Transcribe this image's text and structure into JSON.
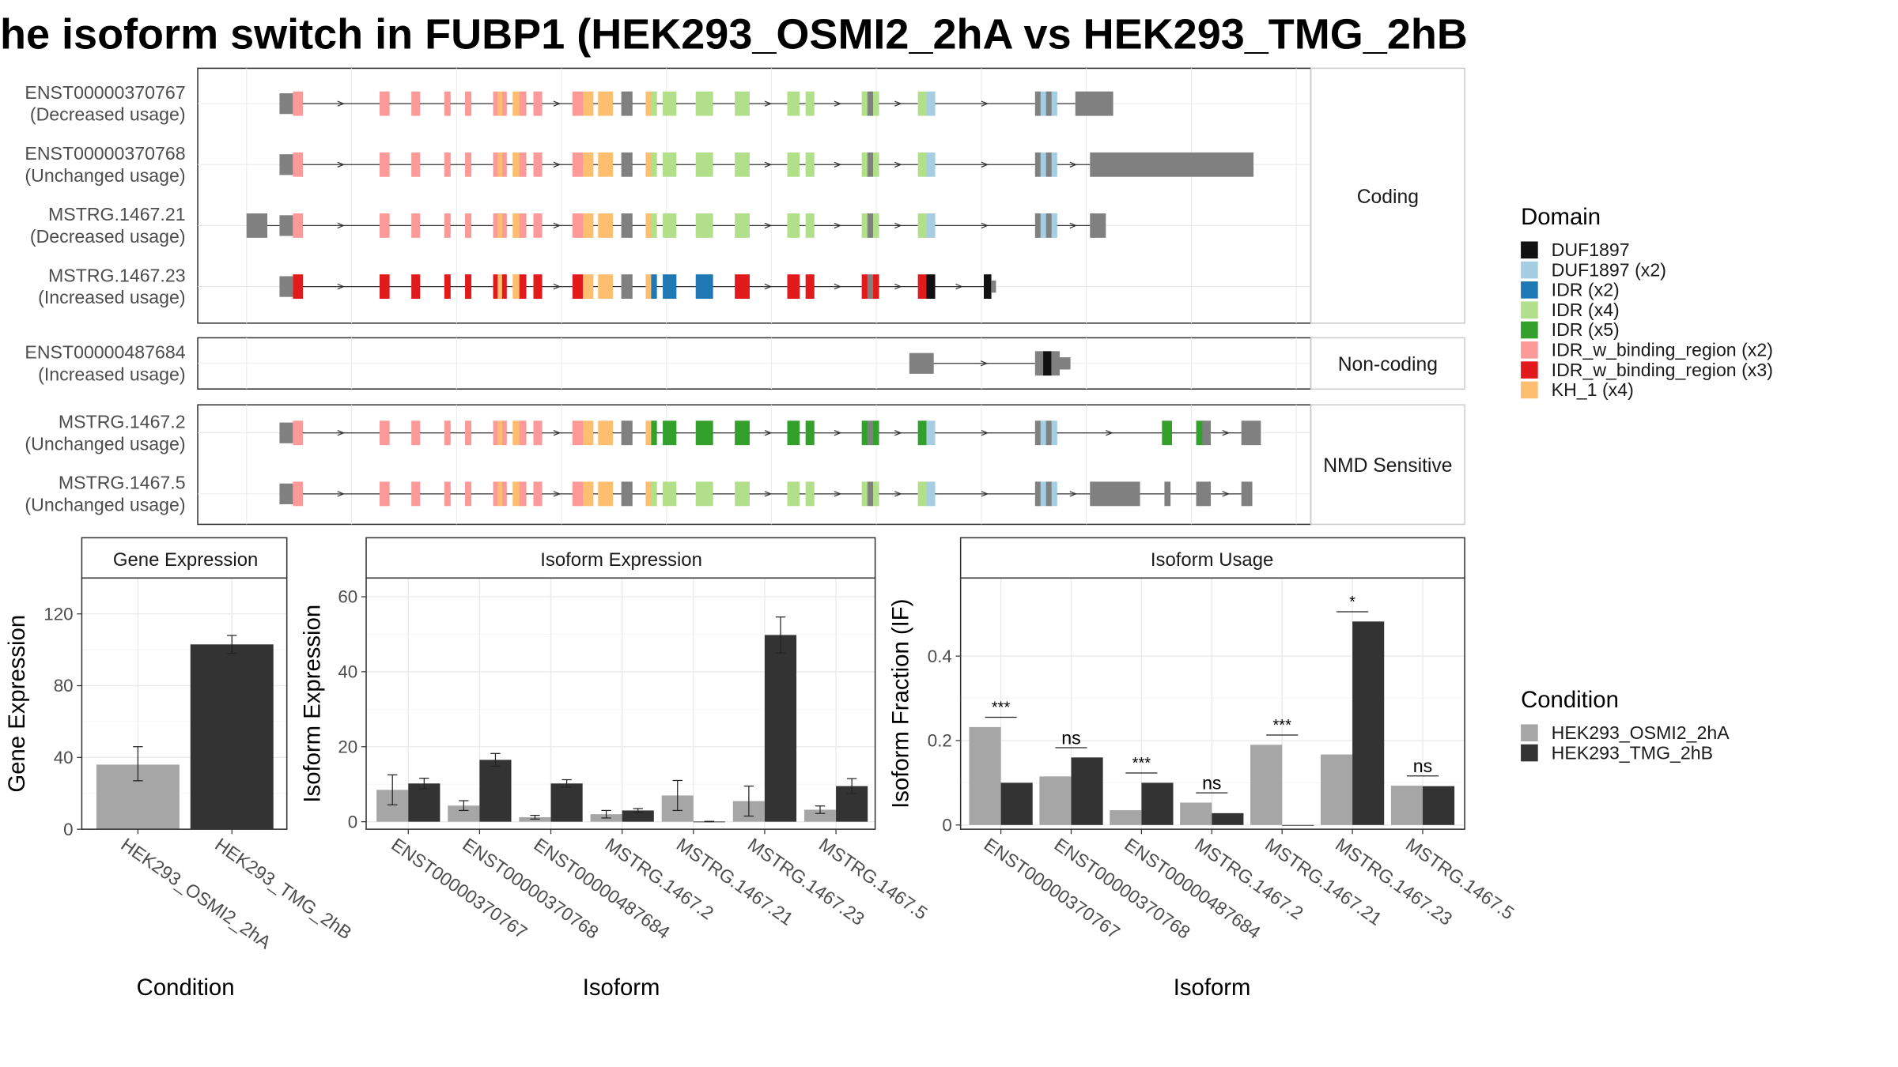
{
  "title": "he isoform switch in FUBP1 (HEK293_OSMI2_2hA vs HEK293_TMG_2hB",
  "colors": {
    "condition_a": "#a6a6a6",
    "condition_b": "#333333",
    "intron": "#333333",
    "utr": "#808080"
  },
  "domain_legend": {
    "title": "Domain",
    "items": [
      {
        "label": "DUF1897",
        "color": "#111111"
      },
      {
        "label": "DUF1897 (x2)",
        "color": "#a6cee3"
      },
      {
        "label": "IDR (x2)",
        "color": "#1f78b4"
      },
      {
        "label": "IDR (x4)",
        "color": "#b2df8a"
      },
      {
        "label": "IDR (x5)",
        "color": "#33a02c"
      },
      {
        "label": "IDR_w_binding_region (x2)",
        "color": "#fb9a99"
      },
      {
        "label": "IDR_w_binding_region (x3)",
        "color": "#e31a1c"
      },
      {
        "label": "KH_1 (x4)",
        "color": "#fdbf6f"
      }
    ]
  },
  "condition_legend": {
    "title": "Condition",
    "items": [
      {
        "label": "HEK293_OSMI2_2hA",
        "color": "#a6a6a6"
      },
      {
        "label": "HEK293_TMG_2hB",
        "color": "#333333"
      }
    ]
  },
  "structure": {
    "panels": [
      {
        "label": "Coding",
        "transcripts": [
          {
            "id": "ENST00000370767",
            "usage": "(Decreased usage)",
            "pattern": "full",
            "extra_first": false,
            "tail": [
              [
                881,
                887
              ],
              [
                887,
                912
              ]
            ]
          },
          {
            "id": "ENST00000370768",
            "usage": "(Unchanged usage)",
            "pattern": "full",
            "extra_first": false,
            "tail": [
              [
                893,
                1027
              ]
            ]
          },
          {
            "id": "MSTRG.1467.21",
            "usage": "(Decreased usage)",
            "pattern": "full",
            "extra_first": true,
            "tail": [
              [
                893,
                906
              ]
            ]
          },
          {
            "id": "MSTRG.1467.23",
            "usage": "(Increased usage)",
            "pattern": "short",
            "extra_first": false,
            "tail": []
          }
        ]
      },
      {
        "label": "Non-coding",
        "transcripts": [
          {
            "id": "ENST00000487684",
            "usage": "(Increased usage)",
            "pattern": "noncoding",
            "extra_first": false,
            "tail": []
          }
        ]
      },
      {
        "label": "NMD Sensitive",
        "transcripts": [
          {
            "id": "MSTRG.1467.2",
            "usage": "(Unchanged usage)",
            "pattern": "nmd1",
            "extra_first": false,
            "tail": [
              [
                952,
                960
              ],
              [
                980,
                986
              ],
              [
                985,
                992
              ],
              [
                1017,
                1033
              ]
            ]
          },
          {
            "id": "MSTRG.1467.5",
            "usage": "(Unchanged usage)",
            "pattern": "nmd2",
            "extra_first": false,
            "tail": [
              [
                893,
                934
              ],
              [
                954,
                959
              ],
              [
                980,
                992
              ],
              [
                1017,
                1026
              ]
            ]
          }
        ]
      }
    ]
  },
  "chart_data": [
    {
      "type": "bar",
      "title": "Gene Expression",
      "xlabel": "Condition",
      "ylabel": "Gene Expression",
      "categories": [
        "HEK293_OSMI2_2hA",
        "HEK293_TMG_2hB"
      ],
      "ylim": [
        0,
        140
      ],
      "yticks": [
        0,
        40,
        80,
        120
      ],
      "series": [
        {
          "name": "Gene Expression",
          "values": [
            36,
            103
          ],
          "err": [
            [
              27,
              46
            ],
            [
              98,
              108
            ]
          ]
        }
      ]
    },
    {
      "type": "bar",
      "title": "Isoform Expression",
      "xlabel": "Isoform",
      "ylabel": "Isoform Expression",
      "categories": [
        "ENST00000370767",
        "ENST00000370768",
        "ENST00000487684",
        "MSTRG.1467.2",
        "MSTRG.1467.21",
        "MSTRG.1467.23",
        "MSTRG.1467.5"
      ],
      "ylim": [
        -2,
        65
      ],
      "yticks": [
        0,
        20,
        40,
        60
      ],
      "series": [
        {
          "name": "HEK293_OSMI2_2hA",
          "values": [
            8.5,
            4.3,
            1.2,
            2.0,
            7.0,
            5.5,
            3.2
          ],
          "err": [
            [
              4.5,
              12.5
            ],
            [
              3.0,
              5.6
            ],
            [
              0.7,
              1.7
            ],
            [
              1.0,
              3.0
            ],
            [
              3.0,
              11.0
            ],
            [
              1.5,
              9.5
            ],
            [
              2.2,
              4.2
            ]
          ]
        },
        {
          "name": "HEK293_TMG_2hB",
          "values": [
            10.2,
            16.5,
            10.2,
            3.0,
            0.05,
            49.8,
            9.5
          ],
          "err": [
            [
              8.8,
              11.6
            ],
            [
              14.8,
              18.2
            ],
            [
              9.2,
              11.2
            ],
            [
              2.5,
              3.5
            ],
            [
              0,
              0.1
            ],
            [
              45.0,
              54.6
            ],
            [
              7.5,
              11.5
            ]
          ]
        }
      ]
    },
    {
      "type": "bar",
      "title": "Isoform Usage",
      "xlabel": "Isoform",
      "ylabel": "Isoform Fraction (IF)",
      "categories": [
        "ENST00000370767",
        "ENST00000370768",
        "ENST00000487684",
        "MSTRG.1467.2",
        "MSTRG.1467.21",
        "MSTRG.1467.23",
        "MSTRG.1467.5"
      ],
      "ylim": [
        -0.01,
        0.585
      ],
      "yticks": [
        0.0,
        0.2,
        0.4
      ],
      "series": [
        {
          "name": "HEK293_OSMI2_2hA",
          "values": [
            0.232,
            0.115,
            0.035,
            0.053,
            0.19,
            0.167,
            0.093
          ]
        },
        {
          "name": "HEK293_TMG_2hB",
          "values": [
            0.1,
            0.16,
            0.1,
            0.028,
            0.0,
            0.482,
            0.092
          ]
        }
      ],
      "significance": [
        "***",
        "ns",
        "***",
        "ns",
        "***",
        "*",
        "ns"
      ]
    }
  ]
}
